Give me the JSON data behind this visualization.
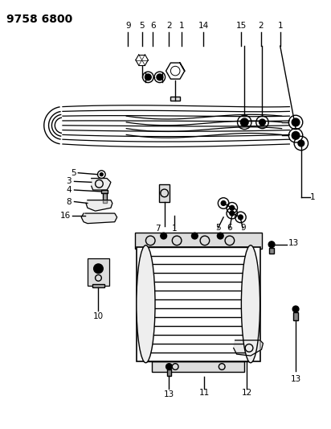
{
  "title": "9758 6800",
  "bg_color": "#ffffff",
  "line_color": "#000000",
  "title_fontsize": 10,
  "label_fontsize": 7.5,
  "figsize": [
    4.12,
    5.33
  ],
  "dpi": 100
}
